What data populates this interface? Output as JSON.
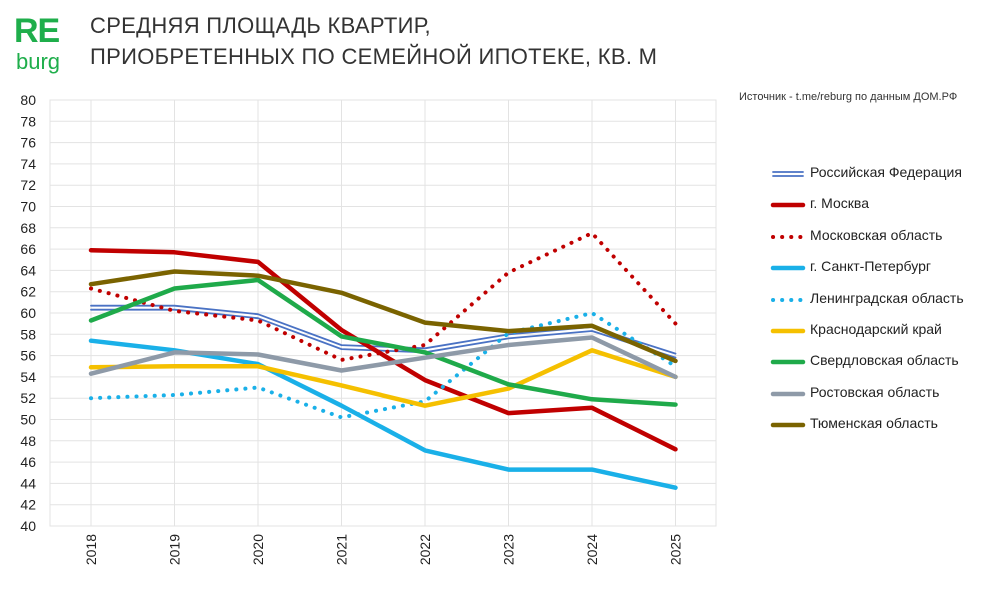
{
  "logo": {
    "re": "RE",
    "burg": "burg"
  },
  "title_lines": [
    "СРЕДНЯЯ ПЛОЩАДЬ КВАРТИР,",
    "ПРИОБРЕТЕННЫХ ПО СЕМЕЙНОЙ ИПОТЕКЕ, КВ. М"
  ],
  "source": "Источник - t.me/reburg по данным ДОМ.РФ",
  "chart_data": {
    "type": "line",
    "title": "СРЕДНЯЯ ПЛОЩАДЬ КВАРТИР, ПРИОБРЕТЕННЫХ ПО СЕМЕЙНОЙ ИПОТЕКЕ, КВ. М",
    "x": [
      "2018",
      "2019",
      "2020",
      "2021",
      "2022",
      "2023",
      "2024",
      "2025"
    ],
    "ylim": [
      40,
      80
    ],
    "yticks": [
      40,
      42,
      44,
      46,
      48,
      50,
      52,
      54,
      56,
      58,
      60,
      62,
      64,
      66,
      68,
      70,
      72,
      74,
      76,
      78,
      80
    ],
    "grid": true,
    "legend_position": "right",
    "series": [
      {
        "name": "Российская Федерация",
        "color": "#4a72c4",
        "style": "double",
        "values": [
          60.5,
          60.5,
          59.7,
          56.8,
          56.5,
          57.8,
          58.5,
          56.0
        ]
      },
      {
        "name": "г. Москва",
        "color": "#c00000",
        "style": "solid",
        "values": [
          65.9,
          65.7,
          64.8,
          58.4,
          53.7,
          50.6,
          51.1,
          47.2
        ]
      },
      {
        "name": "Московская область",
        "color": "#c00000",
        "style": "dotted",
        "values": [
          62.3,
          60.2,
          59.3,
          55.6,
          57.0,
          63.8,
          67.5,
          59.0
        ]
      },
      {
        "name": "г. Санкт-Петербург",
        "color": "#1ab0e8",
        "style": "solid",
        "values": [
          57.4,
          56.5,
          55.2,
          51.3,
          47.1,
          45.3,
          45.3,
          43.6
        ]
      },
      {
        "name": "Ленинградская область",
        "color": "#1ab0e8",
        "style": "dotted",
        "values": [
          52.0,
          52.3,
          53.0,
          50.2,
          51.7,
          58.1,
          60.0,
          55.0
        ]
      },
      {
        "name": "Краснодарский край",
        "color": "#f5c000",
        "style": "solid",
        "values": [
          54.9,
          55.0,
          55.0,
          53.2,
          51.3,
          52.9,
          56.5,
          54.0
        ]
      },
      {
        "name": "Свердловская область",
        "color": "#1faa4a",
        "style": "solid",
        "values": [
          59.3,
          62.3,
          63.1,
          57.8,
          56.3,
          53.3,
          51.9,
          51.4
        ]
      },
      {
        "name": "Ростовская область",
        "color": "#8e9aa8",
        "style": "solid",
        "values": [
          54.3,
          56.3,
          56.1,
          54.6,
          55.8,
          57.0,
          57.7,
          54.0
        ]
      },
      {
        "name": "Тюменская область",
        "color": "#7a6300",
        "style": "solid",
        "values": [
          62.7,
          63.9,
          63.5,
          61.9,
          59.1,
          58.3,
          58.8,
          55.5
        ]
      }
    ]
  },
  "colors": {
    "brand": "#1fae4b",
    "grid": "#e3e3e3"
  }
}
